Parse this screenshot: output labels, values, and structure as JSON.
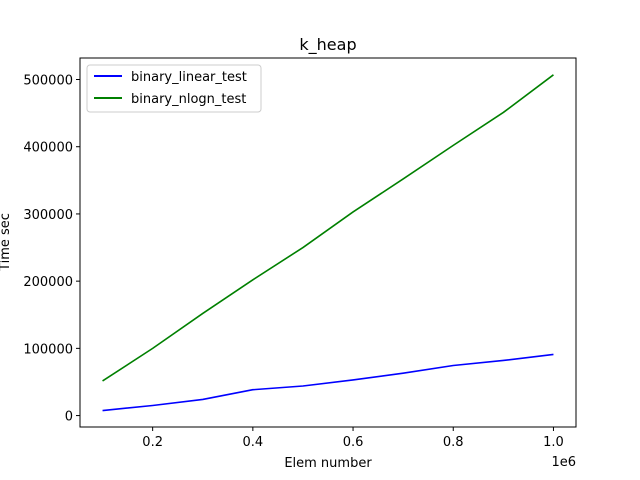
{
  "chart_data": {
    "type": "line",
    "title": "k_heap",
    "xlabel": "Elem number",
    "ylabel": "Time sec",
    "x_offset_label": "1e6",
    "x": [
      100000,
      200000,
      300000,
      400000,
      500000,
      600000,
      700000,
      800000,
      900000,
      1000000
    ],
    "series": [
      {
        "name": "binary_linear_test",
        "color": "#0000ff",
        "values": [
          7500,
          15000,
          24000,
          38500,
          44000,
          53000,
          63000,
          74500,
          82000,
          91000
        ]
      },
      {
        "name": "binary_nlogn_test",
        "color": "#008000",
        "values": [
          51500,
          100000,
          152000,
          202000,
          250000,
          303000,
          352000,
          402000,
          451000,
          507000
        ]
      }
    ],
    "xlim": [
      55000,
      1045000
    ],
    "ylim": [
      -17000,
      532000
    ],
    "x_ticks": [
      {
        "value": 200000,
        "label": "0.2"
      },
      {
        "value": 400000,
        "label": "0.4"
      },
      {
        "value": 600000,
        "label": "0.6"
      },
      {
        "value": 800000,
        "label": "0.8"
      },
      {
        "value": 1000000,
        "label": "1.0"
      }
    ],
    "y_ticks": [
      {
        "value": 0,
        "label": "0"
      },
      {
        "value": 100000,
        "label": "100000"
      },
      {
        "value": 200000,
        "label": "200000"
      },
      {
        "value": 300000,
        "label": "300000"
      },
      {
        "value": 400000,
        "label": "400000"
      },
      {
        "value": 500000,
        "label": "500000"
      }
    ],
    "grid": false,
    "legend_position": "top-left"
  }
}
